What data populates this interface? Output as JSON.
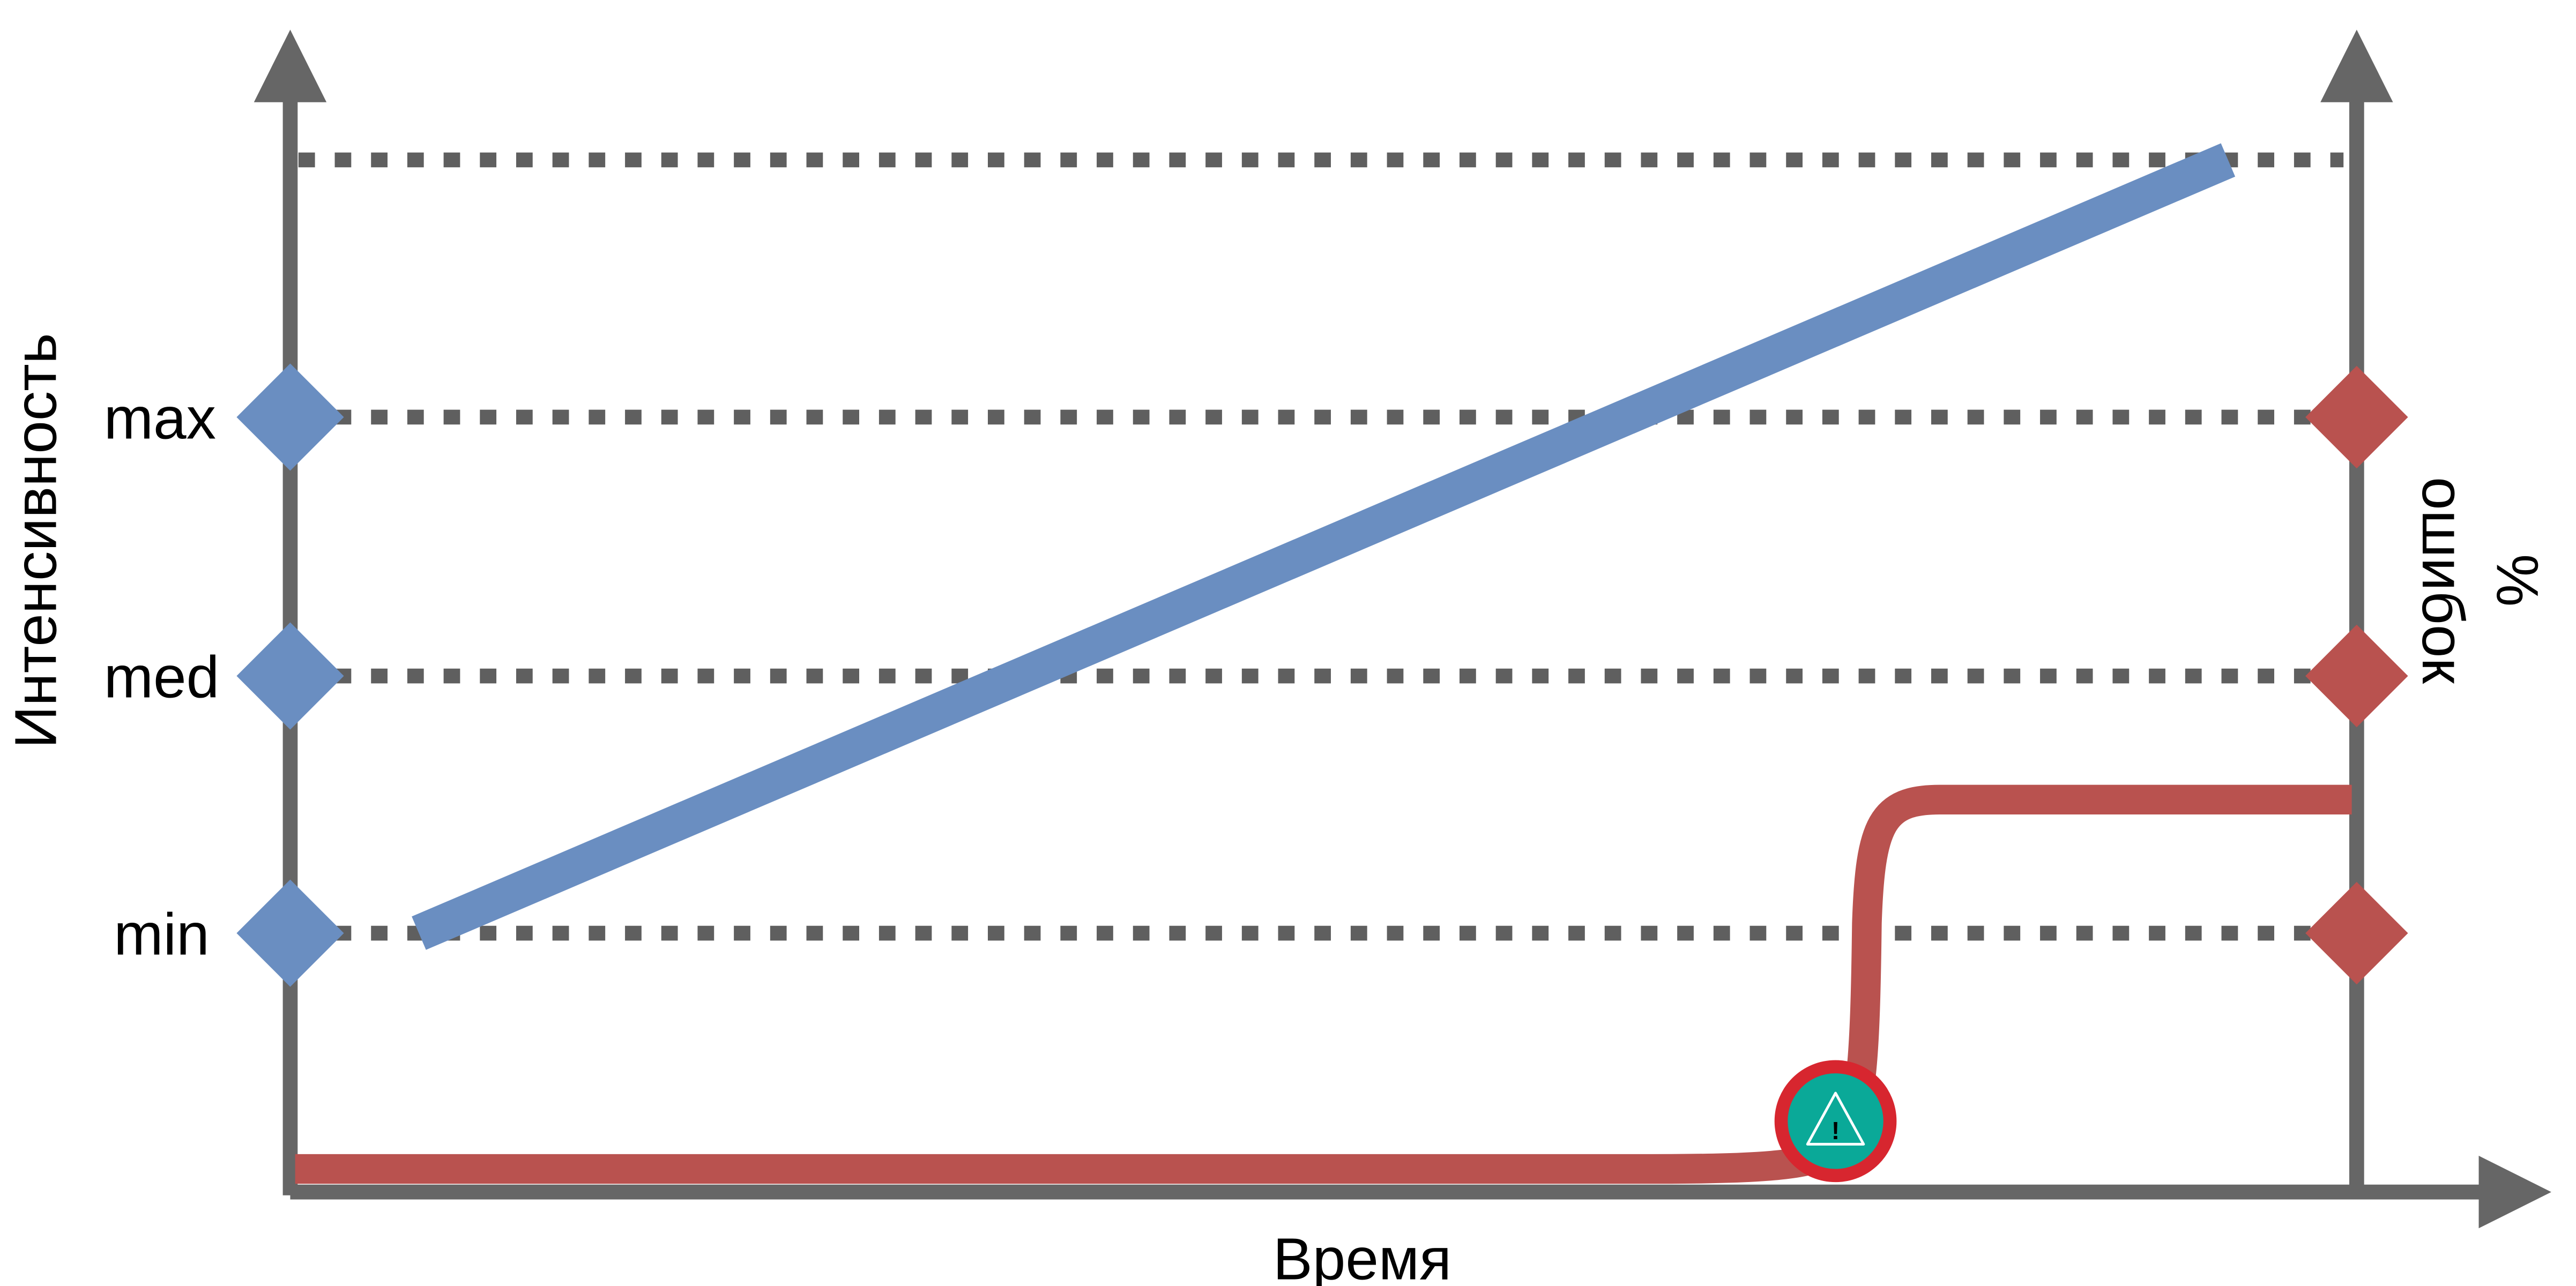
{
  "y_axis_left": {
    "title": "Интенсивность",
    "levels": [
      "min",
      "med",
      "max"
    ]
  },
  "y_axis_right": {
    "title_line1": "%",
    "title_line2": "ошибок"
  },
  "x_axis": {
    "title": "Время"
  },
  "warning_marker": {
    "icon": "warning-triangle-icon",
    "glyph": "!"
  },
  "colors": {
    "axis": "#666666",
    "gridline": "#5f5f5f",
    "intensity": "#6a8ec1",
    "errors": "#b9524f",
    "warning_ring": "#d7262f",
    "warning_fill": "#0aa998"
  }
}
